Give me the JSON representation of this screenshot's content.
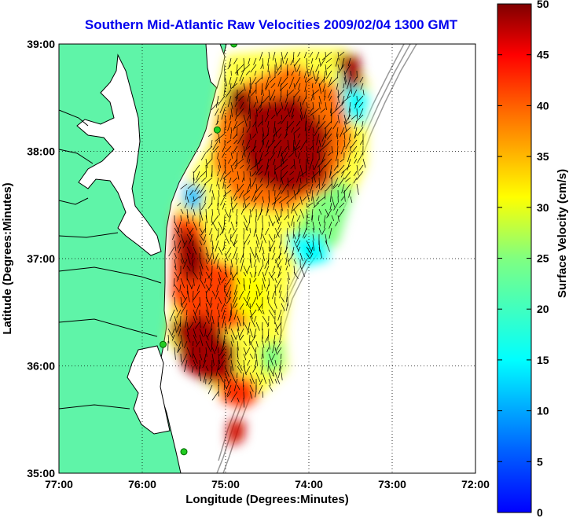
{
  "title": "Southern Mid-Atlantic Raw Velocities 2009/02/04 1300 GMT",
  "axes": {
    "xlabel": "Longitude (Degrees:Minutes)",
    "ylabel": "Latitude (Degrees:Minutes)",
    "x_ticks": [
      "77:00",
      "76:00",
      "75:00",
      "74:00",
      "73:00",
      "72:00"
    ],
    "y_ticks": [
      "39:00",
      "38:00",
      "37:00",
      "36:00",
      "35:00"
    ],
    "grid": "dotted"
  },
  "colorbar": {
    "label": "Surface Velocity (cm/s)",
    "ticks": [
      "50",
      "45",
      "40",
      "35",
      "30",
      "25",
      "20",
      "15",
      "10",
      "5",
      "0"
    ],
    "range": [
      0,
      50
    ],
    "colormap": "jet"
  },
  "colors": {
    "title": "#0000ee",
    "land": "#5ff4a8",
    "coastline": "#000000",
    "bathymetry": "#9a9a9a",
    "site_marker": "#22cc22"
  },
  "chart_data": {
    "type": "heatmap",
    "title": "Southern Mid-Atlantic Raw Velocities 2009/02/04 1300 GMT",
    "xlabel": "Longitude (Degrees:Minutes)",
    "ylabel": "Latitude (Degrees:Minutes)",
    "xlim": [
      -77,
      -72
    ],
    "ylim": [
      35,
      39
    ],
    "colorbar_label": "Surface Velocity (cm/s)",
    "clim": [
      0,
      50
    ],
    "sites": [
      {
        "lon": -74.9,
        "lat": 39.0
      },
      {
        "lon": -75.1,
        "lat": 38.2
      },
      {
        "lon": -75.75,
        "lat": 36.2
      },
      {
        "lon": -75.5,
        "lat": 35.2
      }
    ]
  }
}
